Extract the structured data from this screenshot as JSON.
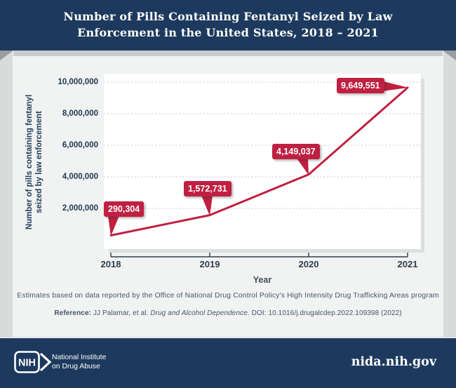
{
  "header": {
    "title_lines": [
      "Number of Pills Containing Fentanyl Seized by Law",
      "Enforcement in the United States, 2018 – 2021"
    ]
  },
  "chart_data": {
    "type": "line",
    "title": "Number of Pills Containing Fentanyl Seized by Law Enforcement in the United States, 2018 – 2021",
    "x": [
      2018,
      2019,
      2020,
      2021
    ],
    "x_tick_labels": [
      "2018",
      "2019",
      "2020",
      "2021"
    ],
    "values": [
      290304,
      1572731,
      4149037,
      9649551
    ],
    "labels": [
      "290,304",
      "1,572,731",
      "4,149,037",
      "9,649,551"
    ],
    "xlabel": "Year",
    "ylabel_lines": [
      "Number of pills containing fentanyl",
      "seized by law enforcement"
    ],
    "ylim": [
      0,
      10000000
    ],
    "y_tick_values": [
      2000000,
      4000000,
      6000000,
      8000000,
      10000000
    ],
    "y_ticks": [
      "2,000,000",
      "4,000,000",
      "6,000,000",
      "8,000,000",
      "10,000,000"
    ],
    "grid": "horizontal dotted",
    "legend": "none"
  },
  "notes": {
    "line1": "Estimates based on data reported by the Office of National Drug Control Policy's High Intensity Drug Trafficking Areas program",
    "ref_label": "Reference:",
    "ref_authors": " JJ Palamar, et al. ",
    "ref_journal": "Drug and Alcohol Dependence.",
    "ref_doi": " DOI: 10.1016/j.drugalcdep.2022.109398 (2022)"
  },
  "footer": {
    "logo_text": "NIH",
    "org_lines": [
      "National Institute",
      "on Drug Abuse"
    ],
    "url": "nida.nih.gov"
  },
  "colors": {
    "navy": "#1d3a5e",
    "crimson": "#bf2041",
    "panel": "#f1f2f2",
    "outer": "#d9dada",
    "fold": "#999ea1"
  }
}
